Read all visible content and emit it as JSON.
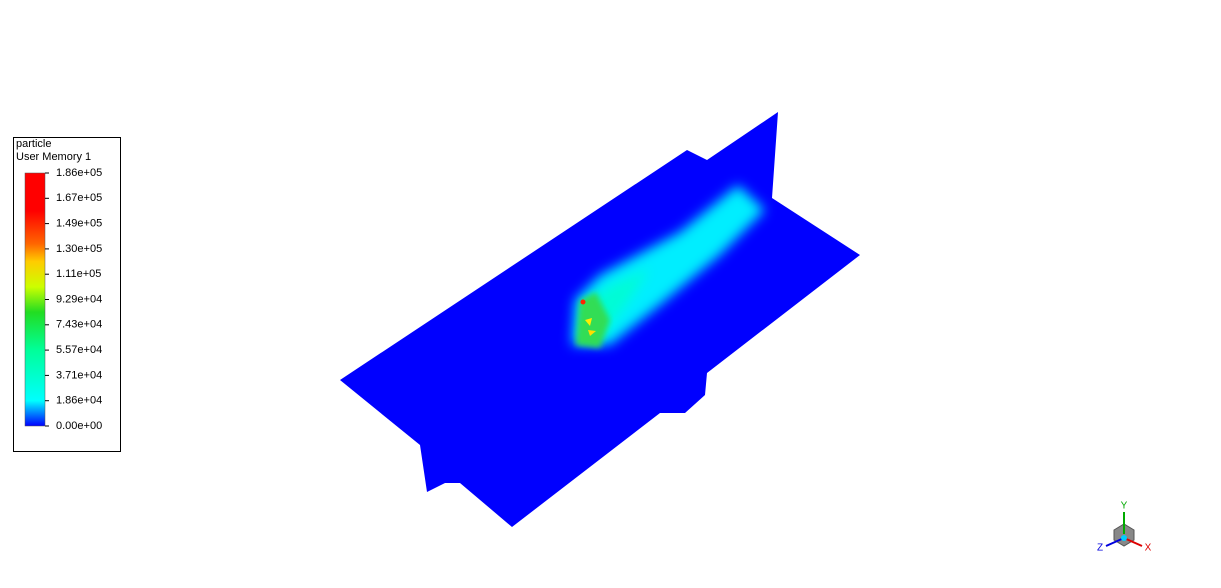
{
  "legend": {
    "title_lines": [
      "particle",
      "User Memory 1"
    ],
    "tick_labels": [
      "1.86e+05",
      "1.67e+05",
      "1.49e+05",
      "1.30e+05",
      "1.11e+05",
      "9.29e+04",
      "7.43e+04",
      "5.57e+04",
      "3.71e+04",
      "1.86e+04",
      "0.00e+00"
    ]
  },
  "triad": {
    "x": "X",
    "y": "Y",
    "z": "Z"
  }
}
